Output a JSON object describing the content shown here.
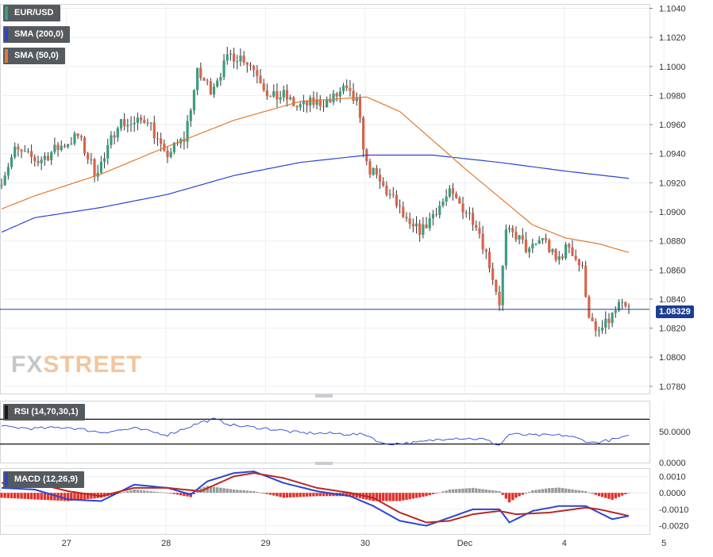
{
  "chart_data": {
    "type": "candlestick",
    "symbol": "EUR/USD",
    "legend": [
      {
        "label": "EUR/USD",
        "color": "#3a9d7e"
      },
      {
        "label": "SMA (200,0)",
        "color": "#2a45d1"
      },
      {
        "label": "SMA (50,0)",
        "color": "#e07a2e"
      }
    ],
    "price_axis": {
      "ticks": [
        "1.1040",
        "1.1020",
        "1.1000",
        "1.0980",
        "1.0960",
        "1.0940",
        "1.0920",
        "1.0900",
        "1.0880",
        "1.0860",
        "1.0840",
        "1.0820",
        "1.0800",
        "1.0780"
      ],
      "ylim": [
        1.0775,
        1.1043
      ]
    },
    "x_axis": {
      "labels": [
        "27",
        "28",
        "29",
        "30",
        "Dec",
        "4",
        "5"
      ],
      "label_positions_in_bars": [
        10,
        40,
        70,
        100,
        130,
        160,
        190
      ]
    },
    "bar_count": 190,
    "current_price": "1.08329",
    "current_price_value": 1.08329,
    "price_anchors": [
      [
        0,
        1.0918
      ],
      [
        5,
        1.0942
      ],
      [
        12,
        1.0935
      ],
      [
        18,
        1.0944
      ],
      [
        24,
        1.0952
      ],
      [
        29,
        1.0928
      ],
      [
        32,
        1.0936
      ],
      [
        36,
        1.0962
      ],
      [
        41,
        1.096
      ],
      [
        45,
        1.0965
      ],
      [
        50,
        1.0938
      ],
      [
        56,
        1.095
      ],
      [
        60,
        1.0995
      ],
      [
        64,
        1.0985
      ],
      [
        70,
        1.1008
      ],
      [
        74,
        1.1006
      ],
      [
        78,
        1.0996
      ],
      [
        82,
        1.0978
      ],
      [
        86,
        1.098
      ],
      [
        90,
        1.0972
      ],
      [
        95,
        1.0975
      ],
      [
        100,
        1.0976
      ],
      [
        104,
        1.0984
      ],
      [
        108,
        1.0975
      ],
      [
        111,
        1.0932
      ],
      [
        116,
        1.0917
      ],
      [
        120,
        1.0905
      ],
      [
        124,
        1.0888
      ],
      [
        128,
        1.0888
      ],
      [
        132,
        1.0902
      ],
      [
        136,
        1.0912
      ],
      [
        140,
        1.0903
      ],
      [
        144,
        1.0893
      ],
      [
        148,
        1.0864
      ],
      [
        151,
        1.0838
      ],
      [
        153,
        1.0885
      ],
      [
        156,
        1.0884
      ],
      [
        160,
        1.0872
      ],
      [
        164,
        1.0883
      ],
      [
        168,
        1.0866
      ],
      [
        172,
        1.0877
      ],
      [
        176,
        1.086
      ],
      [
        178,
        1.083
      ],
      [
        180,
        1.0815
      ],
      [
        183,
        1.0822
      ],
      [
        187,
        1.0835
      ],
      [
        189,
        1.0833
      ]
    ],
    "sma200_anchors": [
      [
        0,
        1.0886
      ],
      [
        10,
        1.0896
      ],
      [
        30,
        1.0903
      ],
      [
        50,
        1.0912
      ],
      [
        70,
        1.0925
      ],
      [
        90,
        1.0934
      ],
      [
        110,
        1.0939
      ],
      [
        130,
        1.0939
      ],
      [
        150,
        1.0934
      ],
      [
        170,
        1.0928
      ],
      [
        189,
        1.0923
      ]
    ],
    "sma50_anchors": [
      [
        0,
        1.0902
      ],
      [
        10,
        1.0911
      ],
      [
        30,
        1.0926
      ],
      [
        50,
        1.0945
      ],
      [
        70,
        1.0963
      ],
      [
        90,
        1.0976
      ],
      [
        110,
        1.0979
      ],
      [
        120,
        1.0969
      ],
      [
        130,
        1.0949
      ],
      [
        140,
        1.0929
      ],
      [
        150,
        1.091
      ],
      [
        160,
        1.0891
      ],
      [
        170,
        1.0882
      ],
      [
        180,
        1.0878
      ],
      [
        189,
        1.0872
      ]
    ],
    "rsi": {
      "label": "RSI (14,70,30,1)",
      "ticks": [
        "50.0000",
        "0.0000"
      ],
      "ylim": [
        0,
        100
      ],
      "upper": 70,
      "lower": 30,
      "anchors": [
        [
          0,
          58
        ],
        [
          10,
          55
        ],
        [
          20,
          57
        ],
        [
          30,
          49
        ],
        [
          40,
          55
        ],
        [
          50,
          45
        ],
        [
          60,
          65
        ],
        [
          64,
          70
        ],
        [
          70,
          60
        ],
        [
          80,
          55
        ],
        [
          90,
          48
        ],
        [
          100,
          47
        ],
        [
          110,
          45
        ],
        [
          115,
          30
        ],
        [
          125,
          32
        ],
        [
          135,
          40
        ],
        [
          145,
          38
        ],
        [
          150,
          28
        ],
        [
          153,
          46
        ],
        [
          160,
          44
        ],
        [
          170,
          44
        ],
        [
          178,
          32
        ],
        [
          183,
          36
        ],
        [
          189,
          42
        ]
      ]
    },
    "macd": {
      "label": "MACD (12,26,9)",
      "ticks": [
        "0.0010",
        "0.0000",
        "-0.0010",
        "-0.0020"
      ],
      "ylim": [
        -0.0025,
        0.0015
      ],
      "macd_anchors": [
        [
          0,
          0.0003
        ],
        [
          10,
          0.0002
        ],
        [
          20,
          -0.0004
        ],
        [
          30,
          -0.0005
        ],
        [
          40,
          0.0005
        ],
        [
          50,
          0.0003
        ],
        [
          57,
          -0.0001
        ],
        [
          62,
          0.0007
        ],
        [
          70,
          0.0012
        ],
        [
          76,
          0.0013
        ],
        [
          85,
          0.0006
        ],
        [
          95,
          0.0001
        ],
        [
          105,
          -0.0002
        ],
        [
          112,
          -0.0008
        ],
        [
          120,
          -0.0017
        ],
        [
          128,
          -0.002
        ],
        [
          135,
          -0.0015
        ],
        [
          142,
          -0.001
        ],
        [
          150,
          -0.001
        ],
        [
          153,
          -0.0018
        ],
        [
          160,
          -0.0011
        ],
        [
          168,
          -0.0008
        ],
        [
          176,
          -0.0008
        ],
        [
          180,
          -0.0012
        ],
        [
          184,
          -0.0016
        ],
        [
          189,
          -0.0014
        ]
      ],
      "signal_anchors": [
        [
          0,
          0.0006
        ],
        [
          10,
          0.0006
        ],
        [
          20,
          0.0001
        ],
        [
          30,
          -0.0002
        ],
        [
          40,
          0.0003
        ],
        [
          50,
          0.0003
        ],
        [
          60,
          0.0001
        ],
        [
          70,
          0.001
        ],
        [
          76,
          0.0012
        ],
        [
          85,
          0.0009
        ],
        [
          95,
          0.0003
        ],
        [
          105,
          0.0
        ],
        [
          112,
          -0.0003
        ],
        [
          120,
          -0.0012
        ],
        [
          128,
          -0.0018
        ],
        [
          135,
          -0.0017
        ],
        [
          142,
          -0.0013
        ],
        [
          150,
          -0.0011
        ],
        [
          155,
          -0.0013
        ],
        [
          165,
          -0.0012
        ],
        [
          176,
          -0.0009
        ],
        [
          180,
          -0.001
        ],
        [
          189,
          -0.0014
        ]
      ]
    }
  }
}
